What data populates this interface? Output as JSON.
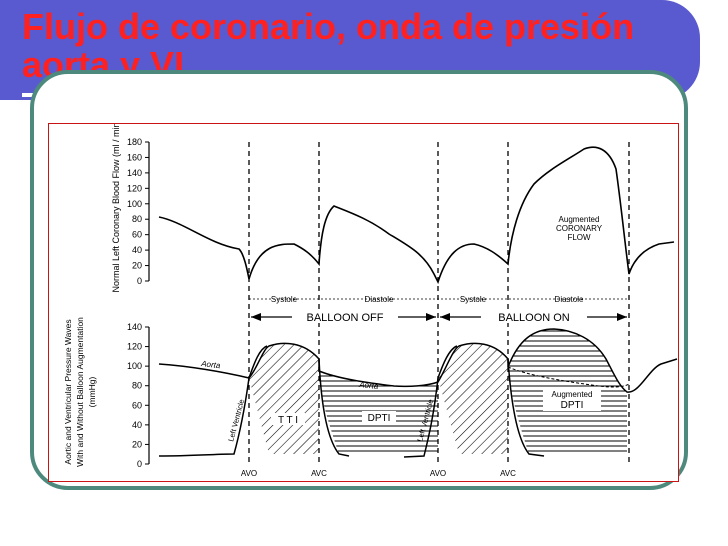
{
  "slide": {
    "title": "Flujo de coronario, onda de presión aorta y VI",
    "colors": {
      "title_bar": "#5a5ad0",
      "title_text": "#ff2020",
      "frame_border": "#4d8a7d",
      "figure_border": "#c81414"
    }
  },
  "chart_data": [
    {
      "type": "line",
      "ylabel": "Normal Left Coronary Blood Flow (ml / min)",
      "ylim": [
        0,
        180
      ],
      "yticks": [
        0,
        20,
        40,
        60,
        80,
        100,
        120,
        140,
        160,
        180
      ],
      "series": [
        {
          "values_note_free": true,
          "x": [
            0,
            0.4,
            0.85,
            1.0,
            1.3,
            1.7,
            2.0,
            2.25,
            2.6,
            2.95,
            3.3,
            3.45,
            3.8,
            4.1,
            4.3,
            4.55,
            4.85,
            5.15,
            5.5,
            5.8,
            6.05,
            6.25,
            6.35,
            6.6,
            6.85,
            7.1
          ],
          "y": [
            90,
            75,
            45,
            5,
            40,
            48,
            20,
            95,
            80,
            60,
            25,
            5,
            45,
            38,
            22,
            78,
            120,
            150,
            175,
            165,
            90,
            5,
            18,
            35,
            45,
            48
          ]
        }
      ],
      "annotations": [
        "Augmented",
        "CORONARY",
        "FLOW"
      ]
    },
    {
      "type": "line",
      "ylabel": "Aortic and Ventricular Pressure Waves With and Without Balloon Augmentation (mmHg)",
      "ylim": [
        0,
        140
      ],
      "yticks": [
        0,
        20,
        40,
        60,
        80,
        100,
        120,
        140
      ],
      "series": [
        {
          "name": "Aorta",
          "x": [
            0,
            0.5,
            1.0,
            1.3,
            1.55,
            1.9,
            2.2,
            2.5,
            2.9,
            3.3,
            3.55,
            3.8,
            4.15,
            4.4,
            4.7,
            5.1,
            5.6,
            6.0,
            6.3,
            6.5,
            6.8,
            7.1
          ],
          "y": [
            100,
            92,
            82,
            108,
            118,
            116,
            100,
            86,
            82,
            78,
            80,
            112,
            118,
            100,
            122,
            135,
            130,
            110,
            75,
            80,
            100,
            110
          ]
        },
        {
          "name": "Left Ventricle",
          "x": [
            0,
            0.7,
            1.0,
            1.1,
            1.3,
            1.6,
            1.9,
            2.1,
            2.2,
            2.3,
            3.35,
            3.45,
            3.55,
            3.8,
            4.1,
            4.3,
            4.4,
            4.5
          ],
          "y": [
            5,
            6,
            8,
            35,
            95,
            118,
            116,
            100,
            30,
            8,
            8,
            35,
            95,
            118,
            115,
            100,
            30,
            10
          ]
        }
      ],
      "annotations": [
        "TTI",
        "DPTI",
        "Augmented",
        "DPTI"
      ]
    }
  ],
  "figure": {
    "phase_labels": [
      "Systole",
      "Diastole",
      "Systole",
      "Diastole"
    ],
    "balloon_labels": [
      "BALLOON OFF",
      "BALLOON ON"
    ],
    "valve_labels": [
      "AVO",
      "AVC",
      "AVO",
      "AVC"
    ],
    "curve_labels": {
      "aorta": "Aorta",
      "aorta2": "Aorta",
      "lv": "Left Ventricle",
      "lv2": "Left Ventricle"
    },
    "area_labels": {
      "tti": "T T I",
      "dpti": "DPTI",
      "aug1": "Augmented",
      "aug2": "DPTI"
    },
    "flow_annotation": [
      "Augmented",
      "CORONARY",
      "FLOW"
    ],
    "ylabels": {
      "top": "Normal Left Coronary Blood Flow (ml / min)",
      "bottom1": "Aortic and Ventricular Pressure Waves",
      "bottom2": "With and Without Balloon Augmentation",
      "bottom3": "(mmHg)"
    }
  }
}
